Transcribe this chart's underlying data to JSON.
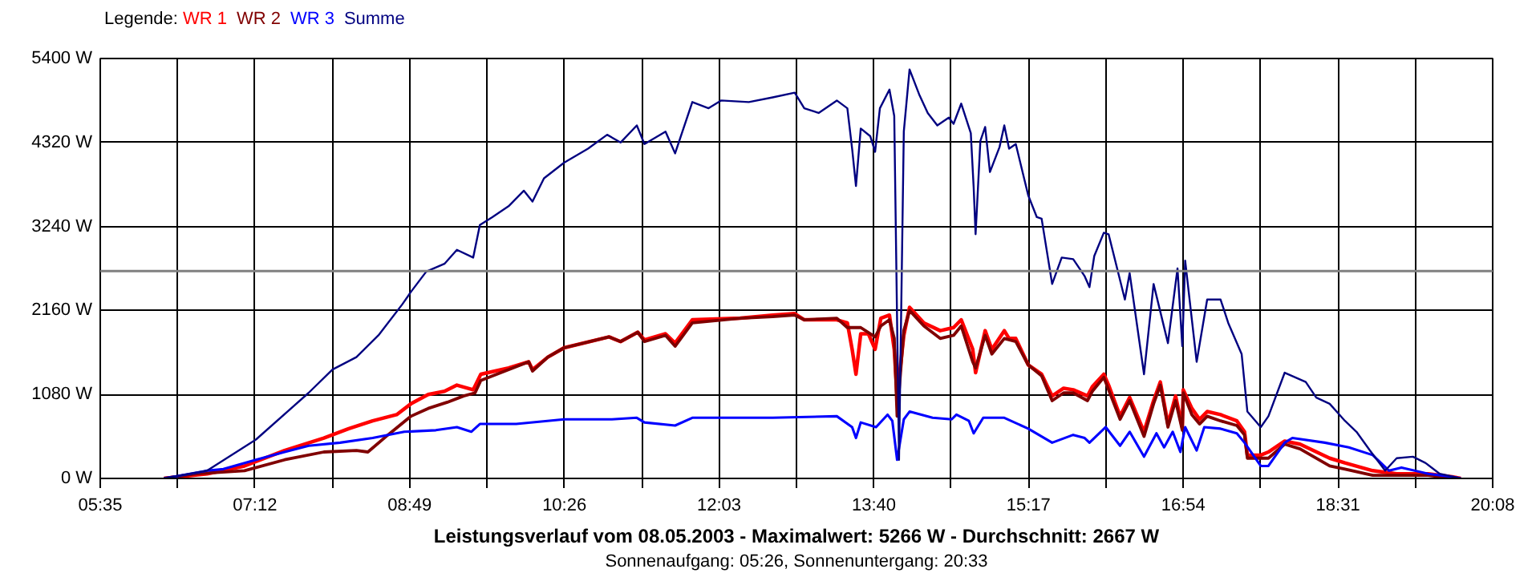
{
  "chart_data": {
    "type": "line",
    "title": "Leistungsverlauf vom 08.05.2003 - Maximalwert: 5266 W - Durchschnitt: 2667 W",
    "subtitle": "Sonnenaufgang: 05:26, Sonnenuntergang: 20:33",
    "legend_title": "Legende:",
    "legend": "top left",
    "grid": true,
    "marker": "none",
    "line_style": "solid",
    "xlim": [
      5.5833,
      20.1333
    ],
    "ylim": [
      0,
      5400
    ],
    "xticks": [
      {
        "value": 5.5833,
        "label": "05:35"
      },
      {
        "value": 6.3917,
        "label": null
      },
      {
        "value": 7.2,
        "label": "07:12"
      },
      {
        "value": 8.0083,
        "label": null
      },
      {
        "value": 8.8167,
        "label": "08:49"
      },
      {
        "value": 9.625,
        "label": null
      },
      {
        "value": 10.4333,
        "label": "10:26"
      },
      {
        "value": 11.2417,
        "label": null
      },
      {
        "value": 12.05,
        "label": "12:03"
      },
      {
        "value": 12.8583,
        "label": null
      },
      {
        "value": 13.6667,
        "label": "13:40"
      },
      {
        "value": 14.475,
        "label": null
      },
      {
        "value": 15.2833,
        "label": "15:17"
      },
      {
        "value": 16.0917,
        "label": null
      },
      {
        "value": 16.9,
        "label": "16:54"
      },
      {
        "value": 17.7083,
        "label": null
      },
      {
        "value": 18.5167,
        "label": "18:31"
      },
      {
        "value": 19.325,
        "label": null
      },
      {
        "value": 20.1333,
        "label": "20:08"
      }
    ],
    "yticks": [
      {
        "value": 0,
        "label": "0 W"
      },
      {
        "value": 1080,
        "label": "1080 W"
      },
      {
        "value": 2160,
        "label": "2160 W"
      },
      {
        "value": 3240,
        "label": "3240 W"
      },
      {
        "value": 4320,
        "label": "4320 W"
      },
      {
        "value": 5400,
        "label": "5400 W"
      }
    ],
    "ref_lines": [
      {
        "axis": "y",
        "value": 2667,
        "color": "#808080"
      }
    ],
    "series": [
      {
        "name": "WR 1",
        "color": "#ff0000",
        "x": [
          6.25,
          6.7,
          7.09,
          7.51,
          7.92,
          8.18,
          8.43,
          8.68,
          8.83,
          9.01,
          9.18,
          9.31,
          9.48,
          9.56,
          9.85,
          10.06,
          10.1,
          10.26,
          10.43,
          10.9,
          11.02,
          11.2,
          11.27,
          11.49,
          11.59,
          11.77,
          12.27,
          12.61,
          12.84,
          12.94,
          13.28,
          13.39,
          13.44,
          13.48,
          13.53,
          13.61,
          13.68,
          13.74,
          13.83,
          13.88,
          13.91,
          13.98,
          14.04,
          14.19,
          14.36,
          14.5,
          14.58,
          14.7,
          14.73,
          14.83,
          14.9,
          15.03,
          15.08,
          15.15,
          15.28,
          15.42,
          15.53,
          15.65,
          15.75,
          15.9,
          15.95,
          16.07,
          16.12,
          16.24,
          16.34,
          16.49,
          16.59,
          16.66,
          16.74,
          16.82,
          16.89,
          16.9,
          16.99,
          17.07,
          17.15,
          17.29,
          17.46,
          17.54,
          17.57,
          17.71,
          17.79,
          17.96,
          18.12,
          18.43,
          18.59,
          18.88,
          19.13,
          19.46,
          19.71,
          19.8
        ],
        "values": [
          0,
          60,
          160,
          360,
          520,
          640,
          740,
          820,
          960,
          1080,
          1120,
          1200,
          1140,
          1340,
          1420,
          1500,
          1400,
          1560,
          1680,
          1820,
          1760,
          1880,
          1780,
          1860,
          1740,
          2040,
          2060,
          2100,
          2120,
          2040,
          2040,
          2000,
          1660,
          1340,
          1860,
          1860,
          1660,
          2060,
          2100,
          1660,
          1060,
          1840,
          2200,
          2000,
          1900,
          1940,
          2040,
          1660,
          1360,
          1900,
          1660,
          1900,
          1800,
          1800,
          1460,
          1340,
          1060,
          1160,
          1140,
          1060,
          1180,
          1340,
          1200,
          800,
          1040,
          600,
          1000,
          1240,
          700,
          1060,
          660,
          1140,
          900,
          760,
          860,
          820,
          740,
          600,
          300,
          300,
          340,
          480,
          440,
          260,
          200,
          100,
          60,
          60,
          20,
          0
        ]
      },
      {
        "name": "WR 2",
        "color": "#800000",
        "x": [
          6.25,
          6.59,
          7.09,
          7.51,
          7.92,
          8.26,
          8.38,
          8.59,
          8.83,
          9.01,
          9.21,
          9.38,
          9.5,
          9.56,
          9.85,
          10.06,
          10.1,
          10.26,
          10.43,
          10.9,
          11.02,
          11.2,
          11.27,
          11.49,
          11.59,
          11.77,
          12.27,
          12.61,
          12.84,
          12.94,
          13.28,
          13.39,
          13.44,
          13.53,
          13.68,
          13.74,
          13.83,
          13.88,
          13.91,
          13.98,
          14.04,
          14.19,
          14.36,
          14.5,
          14.58,
          14.7,
          14.73,
          14.83,
          14.9,
          15.03,
          15.15,
          15.28,
          15.42,
          15.53,
          15.65,
          15.75,
          15.9,
          15.95,
          16.07,
          16.12,
          16.24,
          16.34,
          16.49,
          16.59,
          16.66,
          16.74,
          16.82,
          16.89,
          16.9,
          16.99,
          17.07,
          17.15,
          17.29,
          17.46,
          17.54,
          17.57,
          17.71,
          17.79,
          17.96,
          18.12,
          18.43,
          18.59,
          18.88,
          19.13,
          19.46,
          19.71
        ],
        "values": [
          0,
          60,
          100,
          240,
          340,
          360,
          340,
          560,
          800,
          900,
          980,
          1060,
          1100,
          1260,
          1400,
          1500,
          1380,
          1560,
          1680,
          1820,
          1760,
          1880,
          1760,
          1840,
          1700,
          2000,
          2060,
          2080,
          2100,
          2040,
          2060,
          1940,
          1940,
          1940,
          1820,
          1960,
          2040,
          1800,
          800,
          1900,
          2160,
          1960,
          1800,
          1840,
          1960,
          1500,
          1420,
          1840,
          1600,
          1800,
          1760,
          1460,
          1320,
          1000,
          1100,
          1100,
          1000,
          1120,
          1300,
          1140,
          760,
          1000,
          540,
          960,
          1200,
          660,
          1000,
          620,
          1100,
          820,
          700,
          800,
          740,
          680,
          560,
          260,
          260,
          260,
          440,
          380,
          160,
          120,
          40,
          40,
          40,
          0
        ]
      },
      {
        "name": "WR 3",
        "color": "#0000ff",
        "x": [
          6.25,
          6.7,
          6.87,
          7.21,
          7.51,
          7.76,
          8.09,
          8.43,
          8.76,
          9.09,
          9.31,
          9.46,
          9.55,
          9.93,
          10.43,
          10.93,
          11.19,
          11.27,
          11.59,
          11.77,
          12.27,
          12.61,
          13.28,
          13.44,
          13.48,
          13.53,
          13.69,
          13.81,
          13.86,
          13.91,
          13.98,
          14.04,
          14.28,
          14.48,
          14.53,
          14.66,
          14.71,
          14.81,
          15.03,
          15.28,
          15.53,
          15.75,
          15.87,
          15.92,
          16.09,
          16.24,
          16.34,
          16.49,
          16.62,
          16.7,
          16.79,
          16.87,
          16.92,
          17.04,
          17.12,
          17.29,
          17.46,
          17.54,
          17.71,
          17.79,
          17.96,
          18.04,
          18.38,
          18.63,
          18.88,
          19.05,
          19.18,
          19.46,
          19.71,
          19.8
        ],
        "values": [
          0,
          100,
          120,
          240,
          340,
          420,
          460,
          520,
          600,
          620,
          660,
          600,
          700,
          700,
          760,
          760,
          780,
          720,
          680,
          780,
          780,
          780,
          800,
          660,
          520,
          720,
          660,
          820,
          740,
          240,
          760,
          860,
          780,
          760,
          820,
          740,
          580,
          780,
          780,
          640,
          460,
          560,
          520,
          460,
          660,
          420,
          600,
          280,
          580,
          400,
          600,
          340,
          660,
          360,
          660,
          640,
          580,
          460,
          160,
          160,
          460,
          520,
          460,
          400,
          300,
          100,
          140,
          60,
          20,
          0
        ]
      },
      {
        "name": "Summe",
        "color": "#000080",
        "x": [
          6.25,
          6.7,
          7.21,
          7.76,
          8.01,
          8.26,
          8.49,
          8.74,
          8.83,
          8.99,
          9.18,
          9.31,
          9.48,
          9.55,
          9.68,
          9.85,
          10.01,
          10.1,
          10.22,
          10.43,
          10.68,
          10.88,
          11.02,
          11.19,
          11.27,
          11.49,
          11.59,
          11.77,
          11.94,
          12.07,
          12.36,
          12.61,
          12.84,
          12.94,
          13.09,
          13.28,
          13.39,
          13.44,
          13.48,
          13.53,
          13.63,
          13.68,
          13.73,
          13.83,
          13.88,
          13.93,
          13.98,
          14.04,
          14.14,
          14.23,
          14.33,
          14.45,
          14.5,
          14.58,
          14.68,
          14.71,
          14.73,
          14.78,
          14.83,
          14.88,
          14.98,
          15.03,
          15.08,
          15.15,
          15.28,
          15.37,
          15.42,
          15.53,
          15.63,
          15.75,
          15.87,
          15.92,
          15.97,
          16.07,
          16.12,
          16.29,
          16.34,
          16.49,
          16.59,
          16.74,
          16.84,
          16.89,
          16.92,
          17.04,
          17.15,
          17.29,
          17.37,
          17.51,
          17.57,
          17.71,
          17.79,
          17.96,
          18.18,
          18.29,
          18.43,
          18.59,
          18.71,
          18.85,
          19.01,
          19.13,
          19.3,
          19.43,
          19.58,
          19.8
        ],
        "values": [
          0,
          100,
          500,
          1100,
          1400,
          1560,
          1840,
          2240,
          2400,
          2660,
          2760,
          2940,
          2840,
          3260,
          3360,
          3500,
          3700,
          3560,
          3860,
          4060,
          4240,
          4420,
          4320,
          4540,
          4300,
          4460,
          4180,
          4840,
          4760,
          4860,
          4840,
          4900,
          4960,
          4760,
          4700,
          4860,
          4760,
          4240,
          3760,
          4500,
          4400,
          4200,
          4760,
          5000,
          4660,
          240,
          4460,
          5260,
          4940,
          4700,
          4540,
          4640,
          4560,
          4820,
          4440,
          3740,
          3140,
          4340,
          4520,
          3940,
          4260,
          4540,
          4240,
          4300,
          3640,
          3360,
          3340,
          2500,
          2840,
          2820,
          2600,
          2460,
          2860,
          3160,
          3140,
          2300,
          2640,
          1340,
          2500,
          1740,
          2700,
          1700,
          2800,
          1500,
          2300,
          2300,
          2000,
          1600,
          860,
          660,
          800,
          1360,
          1240,
          1040,
          960,
          740,
          600,
          360,
          100,
          260,
          280,
          200,
          60,
          0
        ]
      }
    ]
  }
}
